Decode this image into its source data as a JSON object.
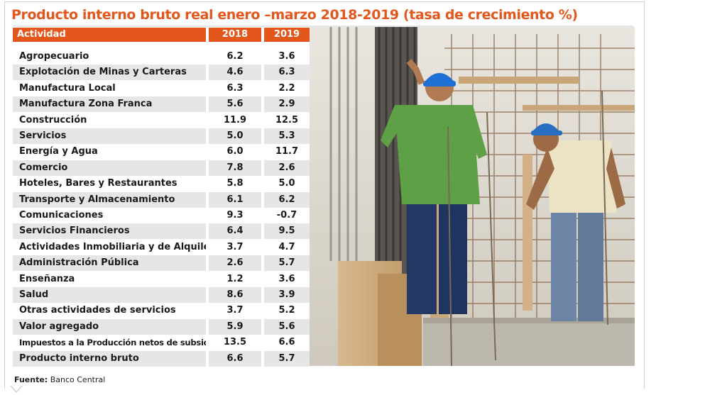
{
  "title": "Producto interno bruto real enero –marzo 2018-2019 (tasa de crecimiento %)",
  "table": {
    "headers": [
      "Actividad",
      "2018",
      "2019"
    ],
    "rows": [
      {
        "actividad": "Agropecuario",
        "y2018": "6.2",
        "y2019": "3.6"
      },
      {
        "actividad": "Explotación de Minas y Carteras",
        "y2018": "4.6",
        "y2019": "6.3"
      },
      {
        "actividad": "Manufactura Local",
        "y2018": "6.3",
        "y2019": "2.2"
      },
      {
        "actividad": "Manufactura Zona Franca",
        "y2018": "5.6",
        "y2019": "2.9"
      },
      {
        "actividad": "Construcción",
        "y2018": "11.9",
        "y2019": "12.5"
      },
      {
        "actividad": "Servicios",
        "y2018": "5.0",
        "y2019": "5.3"
      },
      {
        "actividad": "Energía y Agua",
        "y2018": "6.0",
        "y2019": "11.7"
      },
      {
        "actividad": "Comercio",
        "y2018": "7.8",
        "y2019": "2.6"
      },
      {
        "actividad": "Hoteles, Bares y Restaurantes",
        "y2018": "5.8",
        "y2019": "5.0"
      },
      {
        "actividad": "Transporte y Almacenamiento",
        "y2018": "6.1",
        "y2019": "6.2"
      },
      {
        "actividad": "Comunicaciones",
        "y2018": "9.3",
        "y2019": "-0.7"
      },
      {
        "actividad": "Servicios Financieros",
        "y2018": "6.4",
        "y2019": "9.5"
      },
      {
        "actividad": "Actividades Inmobiliaria y de Alquiler",
        "y2018": "3.7",
        "y2019": "4.7"
      },
      {
        "actividad": "Administración Pública",
        "y2018": "2.6",
        "y2019": "5.7"
      },
      {
        "actividad": "Enseñanza",
        "y2018": "1.2",
        "y2019": "3.6"
      },
      {
        "actividad": "Salud",
        "y2018": "8.6",
        "y2019": "3.9"
      },
      {
        "actividad": "Otras actividades de servicios",
        "y2018": "3.7",
        "y2019": "5.2"
      },
      {
        "actividad": "Valor agregado",
        "y2018": "5.9",
        "y2019": "5.6"
      },
      {
        "actividad": "Impuestos a la Producción netos de subsidios",
        "y2018": "13.5",
        "y2019": "6.6"
      },
      {
        "actividad": "Producto interno bruto",
        "y2018": "6.6",
        "y2019": "5.7"
      }
    ]
  },
  "source": {
    "label": "Fuente:",
    "text": "Banco Central"
  },
  "colors": {
    "accent": "#e4571c",
    "row_shade": "#e6e6e6"
  }
}
